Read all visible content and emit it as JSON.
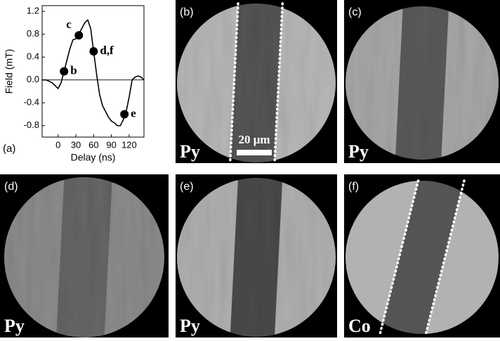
{
  "chart_data": {
    "type": "line",
    "panel_label": "(a)",
    "x_label": "Delay (ns)",
    "y_label": "Field (mT)",
    "x": [
      -27,
      -20,
      -10,
      0,
      5,
      10,
      15,
      20,
      25,
      30,
      35,
      40,
      45,
      50,
      55,
      60,
      65,
      70,
      75,
      80,
      85,
      90,
      95,
      100,
      105,
      110,
      115,
      120,
      125,
      130,
      135,
      140,
      145
    ],
    "series": [
      {
        "color": "#000000",
        "values": [
          0.0,
          0.0,
          -0.05,
          -0.15,
          -0.05,
          0.15,
          0.35,
          0.55,
          0.7,
          0.72,
          0.8,
          0.9,
          1.0,
          1.05,
          0.9,
          0.5,
          0.1,
          -0.25,
          -0.45,
          -0.55,
          -0.65,
          -0.72,
          -0.75,
          -0.8,
          -0.8,
          -0.7,
          -0.55,
          -0.3,
          0.0,
          0.05,
          0.07,
          0.05,
          0.0
        ]
      }
    ],
    "points": [
      {
        "label": "b",
        "x": 10,
        "y": 0.15
      },
      {
        "label": "c",
        "x": 35,
        "y": 0.78
      },
      {
        "label": "d,f",
        "x": 60,
        "y": 0.5
      },
      {
        "label": "e",
        "x": 112,
        "y": -0.6
      }
    ],
    "xlim": [
      -27,
      145
    ],
    "ylim": [
      -1.0,
      1.3
    ],
    "xticks": [
      0,
      30,
      60,
      90,
      120
    ],
    "yticks": [
      -0.8,
      -0.4,
      {
        "value": 0,
        "label": "0.0"
      },
      0.4,
      0.8,
      1.2
    ]
  },
  "panels": [
    {
      "label": "(b)",
      "material": "Py"
    },
    {
      "label": "(c)",
      "material": "Py"
    },
    {
      "label": "(d)",
      "material": "Py"
    },
    {
      "label": "(e)",
      "material": "Py"
    },
    {
      "label": "(f)",
      "material": "Co"
    }
  ],
  "scale_bar": "20 μm"
}
